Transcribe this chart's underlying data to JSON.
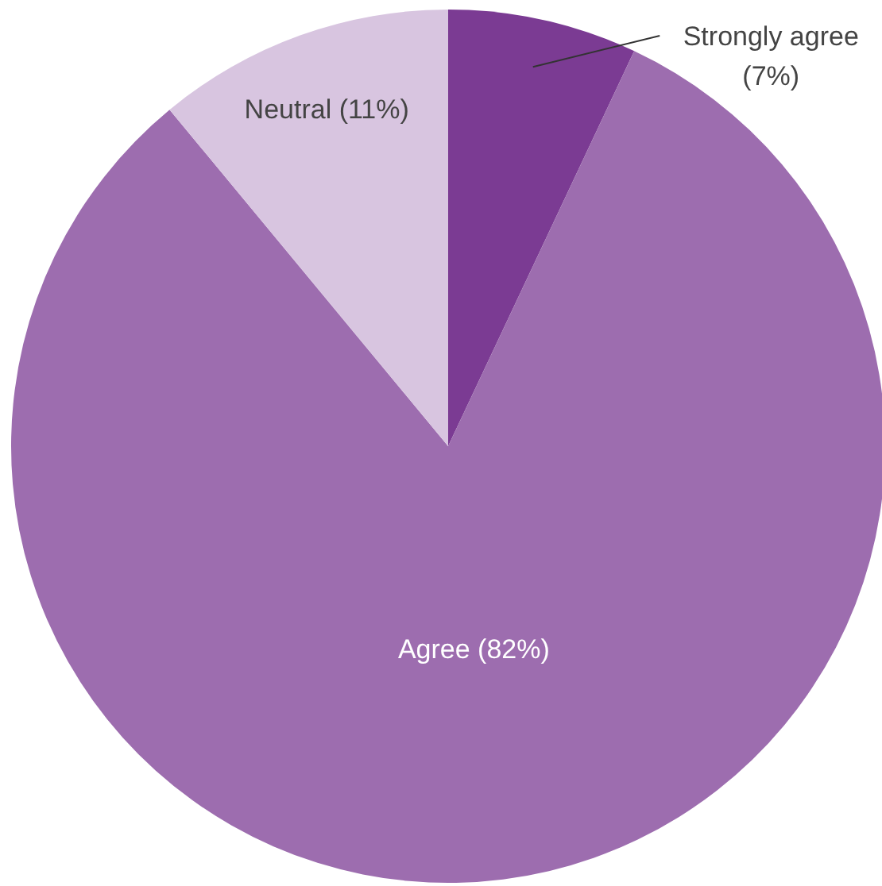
{
  "chart_data": {
    "type": "pie",
    "categories": [
      "Strongly agree",
      "Agree",
      "Neutral"
    ],
    "values": [
      7,
      82,
      11
    ],
    "colors": [
      "#7b3b93",
      "#9d6daf",
      "#d8c5e0"
    ],
    "value_labels": [
      "(7%)",
      "(82%)",
      "(11%)"
    ]
  }
}
